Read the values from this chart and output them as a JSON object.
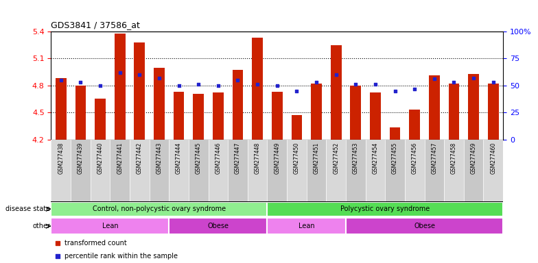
{
  "title": "GDS3841 / 37586_at",
  "samples": [
    "GSM277438",
    "GSM277439",
    "GSM277440",
    "GSM277441",
    "GSM277442",
    "GSM277443",
    "GSM277444",
    "GSM277445",
    "GSM277446",
    "GSM277447",
    "GSM277448",
    "GSM277449",
    "GSM277450",
    "GSM277451",
    "GSM277452",
    "GSM277453",
    "GSM277454",
    "GSM277455",
    "GSM277456",
    "GSM277457",
    "GSM277458",
    "GSM277459",
    "GSM277460"
  ],
  "bar_values": [
    4.88,
    4.8,
    4.65,
    5.38,
    5.28,
    5.0,
    4.73,
    4.71,
    4.72,
    4.97,
    5.33,
    4.73,
    4.47,
    4.82,
    5.25,
    4.8,
    4.72,
    4.33,
    4.53,
    4.91,
    4.82,
    4.93,
    4.82
  ],
  "blue_percentile": [
    55,
    53,
    50,
    62,
    60,
    57,
    50,
    51,
    50,
    55,
    51,
    50,
    45,
    53,
    60,
    51,
    51,
    45,
    47,
    56,
    53,
    57,
    53
  ],
  "ylim_left": [
    4.2,
    5.4
  ],
  "ylim_right": [
    0,
    100
  ],
  "yticks_left": [
    4.2,
    4.5,
    4.8,
    5.1,
    5.4
  ],
  "yticks_right": [
    0,
    25,
    50,
    75,
    100
  ],
  "bar_color": "#cc2200",
  "blue_color": "#2222cc",
  "disease_state_groups": [
    {
      "label": "Control, non-polycystic ovary syndrome",
      "start": 0,
      "end": 10,
      "color": "#90ee90"
    },
    {
      "label": "Polycystic ovary syndrome",
      "start": 11,
      "end": 22,
      "color": "#55dd55"
    }
  ],
  "other_groups": [
    {
      "label": "Lean",
      "start": 0,
      "end": 5,
      "color": "#ee82ee"
    },
    {
      "label": "Obese",
      "start": 6,
      "end": 10,
      "color": "#cc44cc"
    },
    {
      "label": "Lean",
      "start": 11,
      "end": 14,
      "color": "#ee82ee"
    },
    {
      "label": "Obese",
      "start": 15,
      "end": 22,
      "color": "#cc44cc"
    }
  ],
  "legend_items": [
    {
      "label": "transformed count",
      "color": "#cc2200"
    },
    {
      "label": "percentile rank within the sample",
      "color": "#2222cc"
    }
  ]
}
